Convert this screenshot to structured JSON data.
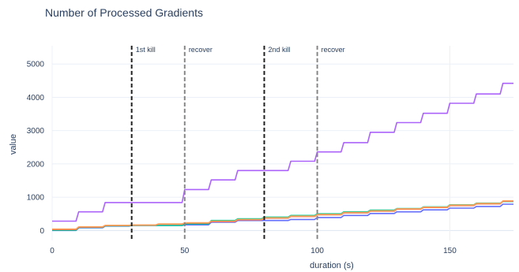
{
  "chart_data": {
    "type": "line",
    "title": "Number of Processed Gradients",
    "xlabel": "duration (s)",
    "ylabel": "value",
    "xlim": [
      0,
      174
    ],
    "ylim": [
      -300,
      5550
    ],
    "xticks": [
      0,
      50,
      100,
      150
    ],
    "xtick_labels": [
      "0",
      "50",
      "100",
      "150"
    ],
    "yticks": [
      0,
      1000,
      2000,
      3000,
      4000,
      5000
    ],
    "ytick_labels": [
      "0",
      "1000",
      "2000",
      "3000",
      "4000",
      "5000"
    ],
    "grid": true,
    "legend": "none",
    "colors": {
      "text": "#2a3f5f",
      "grid": "#ebf0f8",
      "kill_line": "#222222",
      "recover_line": "#888888"
    },
    "annotations": [
      {
        "x": 30,
        "label": "1st kill",
        "style": "kill"
      },
      {
        "x": 50,
        "label": "recover",
        "style": "recover"
      },
      {
        "x": 80,
        "label": "2nd kill",
        "style": "kill"
      },
      {
        "x": 100,
        "label": "recover",
        "style": "recover"
      }
    ],
    "series": [
      {
        "color": "#ab63fa",
        "x": [
          0,
          9,
          10,
          19,
          20,
          49,
          50,
          59,
          60,
          69,
          70,
          89,
          90,
          99,
          100,
          109,
          110,
          119,
          120,
          129,
          130,
          139,
          140,
          149,
          150,
          159,
          160,
          169,
          170,
          174
        ],
        "y": [
          280,
          280,
          560,
          560,
          840,
          840,
          1230,
          1230,
          1520,
          1520,
          1800,
          1800,
          2080,
          2080,
          2360,
          2360,
          2640,
          2640,
          2950,
          2950,
          3240,
          3240,
          3520,
          3520,
          3820,
          3820,
          4100,
          4100,
          4420,
          4420
        ]
      },
      {
        "color": "#636efa",
        "x": [
          0,
          9,
          10,
          19,
          20,
          29,
          30,
          39,
          40,
          49,
          50,
          59,
          60,
          69,
          70,
          89,
          90,
          99,
          100,
          109,
          110,
          119,
          120,
          129,
          130,
          139,
          140,
          149,
          150,
          159,
          160,
          169,
          170,
          174
        ],
        "y": [
          0,
          0,
          80,
          80,
          130,
          130,
          150,
          150,
          150,
          150,
          170,
          170,
          250,
          250,
          300,
          300,
          330,
          330,
          390,
          390,
          450,
          450,
          510,
          510,
          560,
          560,
          620,
          620,
          670,
          670,
          720,
          720,
          790,
          790
        ]
      },
      {
        "color": "#00cc96",
        "x": [
          0,
          9,
          10,
          19,
          20,
          29,
          30,
          39,
          40,
          49,
          50,
          59,
          60,
          69,
          70,
          79,
          80,
          89,
          90,
          99,
          100,
          109,
          110,
          119,
          120,
          129,
          130,
          139,
          140,
          149,
          150,
          159,
          160,
          169,
          170,
          174
        ],
        "y": [
          10,
          10,
          90,
          90,
          140,
          140,
          150,
          150,
          150,
          150,
          200,
          200,
          300,
          300,
          350,
          350,
          400,
          400,
          450,
          450,
          500,
          500,
          560,
          560,
          610,
          610,
          660,
          660,
          710,
          710,
          770,
          770,
          820,
          820,
          870,
          870
        ]
      },
      {
        "color": "#ef553b",
        "x": [
          0,
          9,
          10,
          19,
          20,
          29,
          30,
          39,
          40,
          49,
          50,
          59,
          60,
          69,
          70,
          79,
          80,
          89,
          90,
          99,
          100,
          109,
          110,
          119,
          120,
          129,
          130,
          139,
          140,
          149,
          150,
          159,
          160,
          169,
          170,
          174
        ],
        "y": [
          30,
          30,
          100,
          100,
          150,
          150,
          160,
          160,
          190,
          190,
          220,
          220,
          270,
          270,
          320,
          320,
          370,
          370,
          420,
          420,
          470,
          470,
          530,
          530,
          580,
          580,
          640,
          640,
          690,
          690,
          750,
          750,
          800,
          800,
          880,
          880
        ]
      },
      {
        "color": "#ffa15a",
        "x": [
          0,
          9,
          10,
          19,
          20,
          29,
          30,
          39,
          40,
          49,
          50,
          59,
          60,
          69,
          70,
          79,
          80,
          89,
          90,
          99,
          100,
          109,
          110,
          119,
          120,
          129,
          130,
          139,
          140,
          149,
          150,
          159,
          160,
          169,
          170,
          174
        ],
        "y": [
          40,
          40,
          110,
          110,
          155,
          155,
          165,
          165,
          195,
          195,
          230,
          230,
          280,
          280,
          330,
          330,
          380,
          380,
          430,
          430,
          480,
          480,
          540,
          540,
          590,
          590,
          650,
          650,
          700,
          700,
          760,
          760,
          810,
          810,
          890,
          890
        ]
      }
    ]
  }
}
